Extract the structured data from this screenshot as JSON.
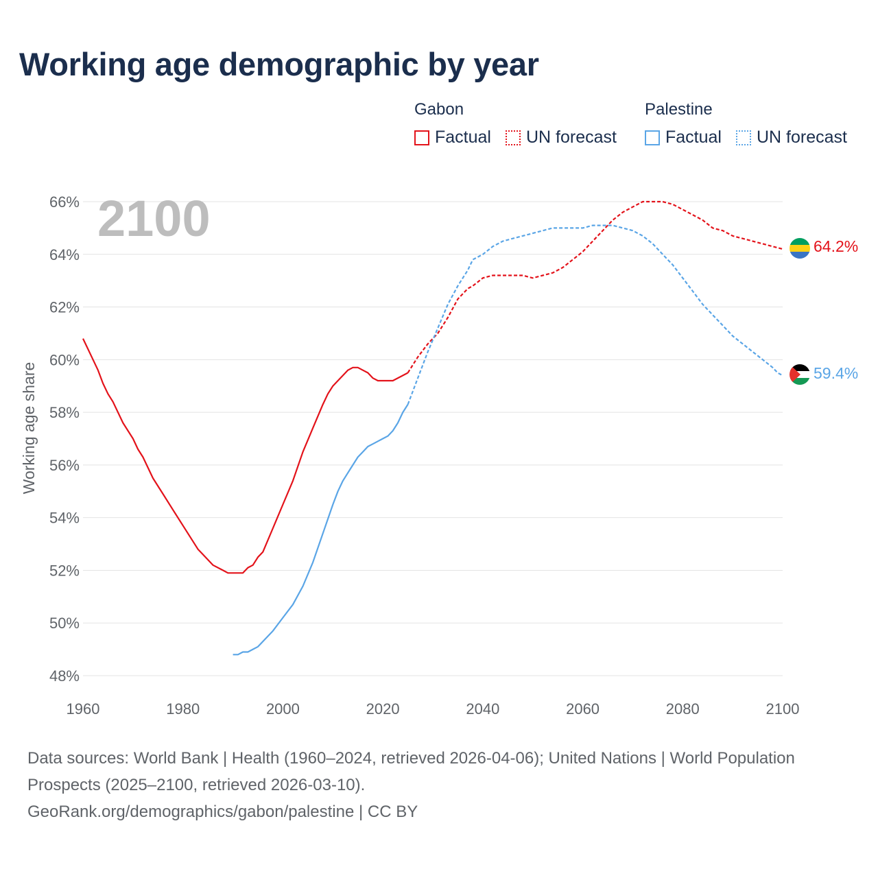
{
  "title": "Working age demographic by year",
  "legend": {
    "groups": [
      {
        "name": "Gabon",
        "color": "#e3121a",
        "factual_label": "Factual",
        "forecast_label": "UN forecast"
      },
      {
        "name": "Palestine",
        "color": "#5aa5e6",
        "factual_label": "Factual",
        "forecast_label": "UN forecast"
      }
    ]
  },
  "year_label": "2100",
  "source": {
    "line1": "Data sources: World Bank | Health (1960–2024, retrieved 2026-04-06); United Nations | World Population Prospects (2025–2100, retrieved 2026-03-10).",
    "line2": "GeoRank.org/demographics/gabon/palestine | CC BY"
  },
  "chart_data": {
    "type": "line",
    "title": "Working age demographic by year",
    "xlabel": "",
    "ylabel": "Working age share",
    "xlim": [
      1960,
      2100
    ],
    "ylim": [
      48,
      66
    ],
    "x_ticks": [
      1960,
      1980,
      2000,
      2020,
      2040,
      2060,
      2080,
      2100
    ],
    "y_ticks": [
      48,
      50,
      52,
      54,
      56,
      58,
      60,
      62,
      64,
      66
    ],
    "y_tick_suffix": "%",
    "grid": true,
    "series": [
      {
        "name": "Gabon",
        "color": "#e3121a",
        "end_label": "64.2%",
        "flag_icon": "gabon-flag-icon",
        "factual": {
          "x": [
            1960,
            1962,
            1963,
            1964,
            1965,
            1966,
            1968,
            1970,
            1971,
            1972,
            1974,
            1976,
            1978,
            1980,
            1982,
            1983,
            1984,
            1986,
            1988,
            1989,
            1990,
            1991,
            1992,
            1993,
            1994,
            1995,
            1996,
            1998,
            2000,
            2002,
            2004,
            2006,
            2008,
            2009,
            2010,
            2011,
            2012,
            2013,
            2014,
            2015,
            2016,
            2017,
            2018,
            2019,
            2020,
            2021,
            2022,
            2024,
            2025
          ],
          "y": [
            60.8,
            60.0,
            59.6,
            59.1,
            58.7,
            58.4,
            57.6,
            57.0,
            56.6,
            56.3,
            55.5,
            54.9,
            54.3,
            53.7,
            53.1,
            52.8,
            52.6,
            52.2,
            52.0,
            51.9,
            51.9,
            51.9,
            51.9,
            52.1,
            52.2,
            52.5,
            52.7,
            53.6,
            54.5,
            55.4,
            56.5,
            57.4,
            58.3,
            58.7,
            59.0,
            59.2,
            59.4,
            59.6,
            59.7,
            59.7,
            59.6,
            59.5,
            59.3,
            59.2,
            59.2,
            59.2,
            59.2,
            59.4,
            59.5
          ]
        },
        "forecast": {
          "x": [
            2025,
            2027,
            2029,
            2031,
            2033,
            2035,
            2037,
            2038,
            2040,
            2042,
            2044,
            2046,
            2048,
            2050,
            2052,
            2054,
            2056,
            2058,
            2060,
            2062,
            2064,
            2066,
            2068,
            2070,
            2072,
            2074,
            2076,
            2078,
            2080,
            2082,
            2084,
            2086,
            2088,
            2090,
            2092,
            2094,
            2096,
            2098,
            2100
          ],
          "y": [
            59.5,
            60.1,
            60.6,
            61.0,
            61.6,
            62.3,
            62.7,
            62.8,
            63.1,
            63.2,
            63.2,
            63.2,
            63.2,
            63.1,
            63.2,
            63.3,
            63.5,
            63.8,
            64.1,
            64.5,
            64.9,
            65.3,
            65.6,
            65.8,
            66.0,
            66.0,
            66.0,
            65.9,
            65.7,
            65.5,
            65.3,
            65.0,
            64.9,
            64.7,
            64.6,
            64.5,
            64.4,
            64.3,
            64.2
          ]
        }
      },
      {
        "name": "Palestine",
        "color": "#5aa5e6",
        "end_label": "59.4%",
        "flag_icon": "palestine-flag-icon",
        "factual": {
          "x": [
            1990,
            1991,
            1992,
            1993,
            1994,
            1995,
            1996,
            1998,
            2000,
            2002,
            2004,
            2006,
            2008,
            2010,
            2011,
            2012,
            2013,
            2014,
            2015,
            2016,
            2017,
            2018,
            2019,
            2020,
            2021,
            2022,
            2023,
            2024,
            2025
          ],
          "y": [
            48.8,
            48.8,
            48.9,
            48.9,
            49.0,
            49.1,
            49.3,
            49.7,
            50.2,
            50.7,
            51.4,
            52.3,
            53.4,
            54.5,
            55.0,
            55.4,
            55.7,
            56.0,
            56.3,
            56.5,
            56.7,
            56.8,
            56.9,
            57.0,
            57.1,
            57.3,
            57.6,
            58.0,
            58.3
          ]
        },
        "forecast": {
          "x": [
            2025,
            2027,
            2029,
            2031,
            2033,
            2035,
            2037,
            2038,
            2040,
            2042,
            2044,
            2046,
            2048,
            2050,
            2052,
            2054,
            2056,
            2058,
            2060,
            2062,
            2064,
            2066,
            2068,
            2070,
            2072,
            2074,
            2076,
            2078,
            2080,
            2082,
            2084,
            2086,
            2088,
            2090,
            2092,
            2094,
            2096,
            2098,
            2099,
            2100
          ],
          "y": [
            58.3,
            59.3,
            60.3,
            61.2,
            62.1,
            62.8,
            63.4,
            63.8,
            64.0,
            64.3,
            64.5,
            64.6,
            64.7,
            64.8,
            64.9,
            65.0,
            65.0,
            65.0,
            65.0,
            65.1,
            65.1,
            65.1,
            65.0,
            64.9,
            64.7,
            64.4,
            64.0,
            63.6,
            63.1,
            62.6,
            62.1,
            61.7,
            61.3,
            60.9,
            60.6,
            60.3,
            60.0,
            59.7,
            59.5,
            59.4
          ]
        }
      }
    ]
  }
}
